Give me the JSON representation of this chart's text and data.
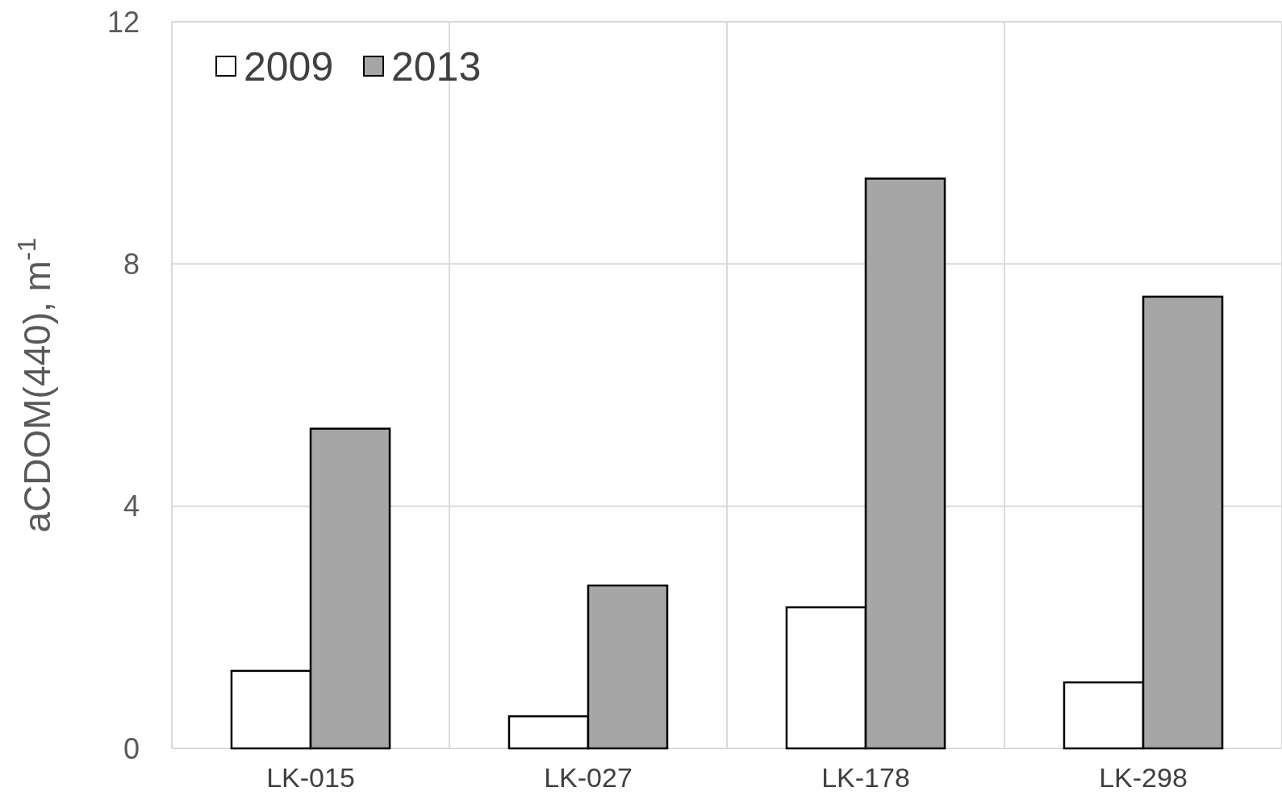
{
  "chart_data": {
    "type": "bar",
    "ylabel": "aCDOM(440), m$^{-1}$",
    "categories": [
      "LK-015",
      "LK-027",
      "LK-178",
      "LK-298"
    ],
    "series": [
      {
        "name": "2009",
        "color": "#ffffff",
        "values": [
          1.28,
          0.53,
          2.33,
          1.09
        ]
      },
      {
        "name": "2013",
        "color": "#a6a6a6",
        "values": [
          5.28,
          2.69,
          9.41,
          7.46
        ]
      }
    ],
    "ylim": [
      0,
      12
    ],
    "yticks": [
      0,
      4,
      8,
      12
    ],
    "grid": true,
    "legend": "top left"
  }
}
